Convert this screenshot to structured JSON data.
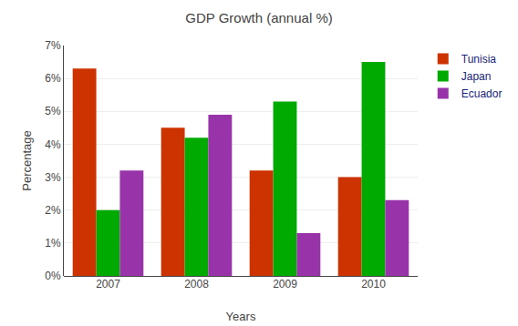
{
  "chart_data": {
    "type": "bar",
    "title": "GDP Growth (annual %)",
    "xlabel": "Years",
    "ylabel": "Percentage",
    "categories": [
      "2007",
      "2008",
      "2009",
      "2010"
    ],
    "series": [
      {
        "name": "Tunisia",
        "color": "#CC3300",
        "values": [
          6.3,
          4.5,
          3.2,
          3.0
        ]
      },
      {
        "name": "Japan",
        "color": "#00AA00",
        "values": [
          2.0,
          4.2,
          5.3,
          6.5
        ]
      },
      {
        "name": "Ecuador",
        "color": "#9933AA",
        "values": [
          3.2,
          4.9,
          1.3,
          2.3
        ]
      }
    ],
    "ylim": [
      0,
      7
    ],
    "yticks": [
      {
        "value": 0,
        "label": "0%"
      },
      {
        "value": 1,
        "label": "1%"
      },
      {
        "value": 2,
        "label": "2%"
      },
      {
        "value": 3,
        "label": "3%"
      },
      {
        "value": 4,
        "label": "4%"
      },
      {
        "value": 5,
        "label": "5%"
      },
      {
        "value": 6,
        "label": "6%"
      },
      {
        "value": 7,
        "label": "7%"
      }
    ],
    "grid": true,
    "legend": "right"
  }
}
